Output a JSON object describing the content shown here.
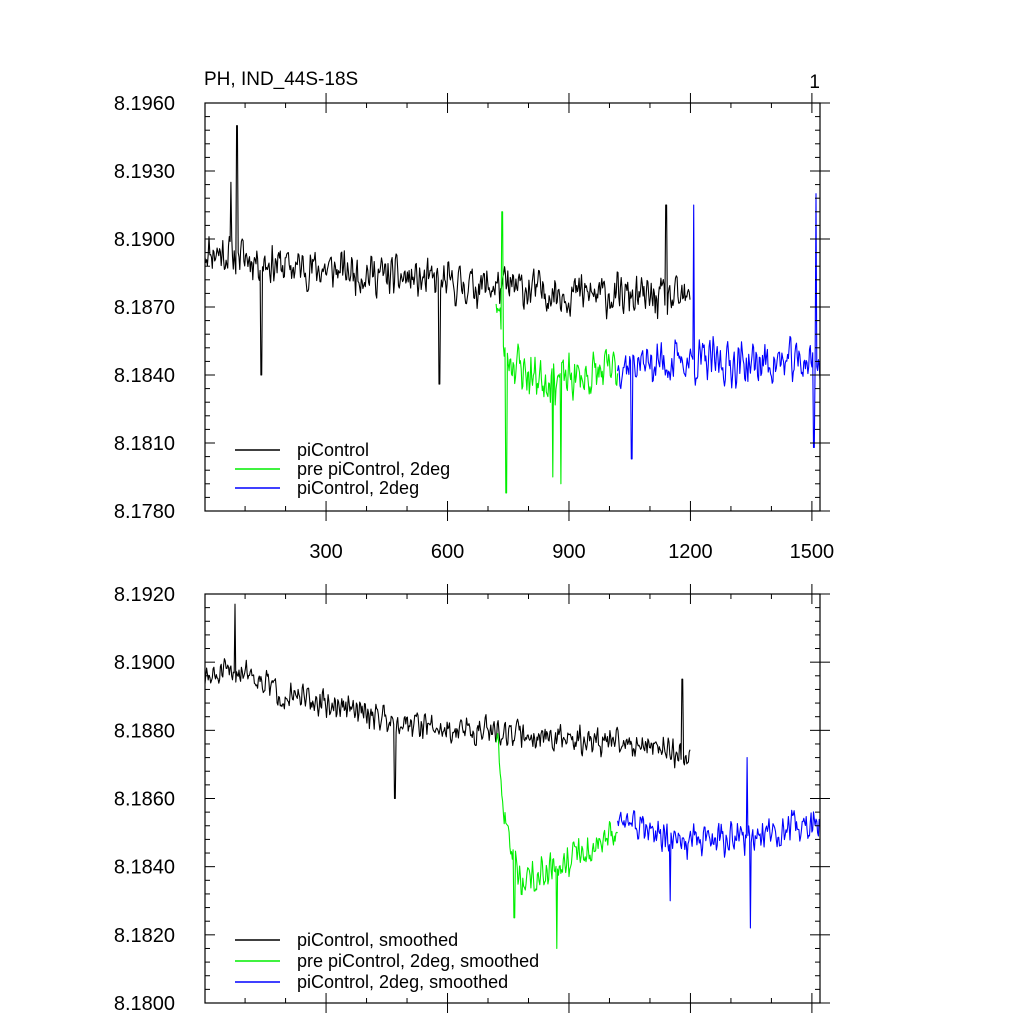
{
  "chart_data": [
    {
      "type": "line",
      "title": "PH, IND_44S-18S",
      "panel_label": "1",
      "xlim": [
        1,
        1520
      ],
      "ylim": [
        8.178,
        8.196
      ],
      "xticks": [
        300,
        600,
        900,
        1200,
        1500
      ],
      "xtick_labels": [
        "300",
        "600",
        "900",
        "1200",
        "1500"
      ],
      "yticks": [
        8.178,
        8.181,
        8.184,
        8.187,
        8.19,
        8.193,
        8.196
      ],
      "ytick_labels": [
        "8.1780",
        "8.1810",
        "8.1840",
        "8.1870",
        "8.1900",
        "8.1930",
        "8.1960"
      ],
      "legend": "bottom-left",
      "series": [
        {
          "name": "piControl",
          "color": "#000000",
          "x_start": 1,
          "x_end": 1200,
          "anchors": [
            [
              1,
              8.1895
            ],
            [
              100,
              8.1892
            ],
            [
              200,
              8.1888
            ],
            [
              400,
              8.1885
            ],
            [
              600,
              8.188
            ],
            [
              720,
              8.1879
            ],
            [
              900,
              8.1876
            ],
            [
              1200,
              8.1873
            ]
          ],
          "amplitude": 0.0011,
          "seed": 11,
          "extremes": [
            [
              80,
              8.195
            ],
            [
              65,
              8.1925
            ],
            [
              140,
              8.184
            ],
            [
              580,
              8.1836
            ],
            [
              1140,
              8.1915
            ]
          ]
        },
        {
          "name": "pre piControl, 2deg",
          "color": "#00ee00",
          "x_start": 720,
          "x_end": 1020,
          "anchors": [
            [
              720,
              8.1875
            ],
            [
              740,
              8.185
            ],
            [
              800,
              8.184
            ],
            [
              900,
              8.1838
            ],
            [
              1020,
              8.1842
            ]
          ],
          "amplitude": 0.0013,
          "seed": 23,
          "extremes": [
            [
              735,
              8.1912
            ],
            [
              745,
              8.1788
            ],
            [
              860,
              8.1795
            ],
            [
              880,
              8.1792
            ]
          ]
        },
        {
          "name": "piControl, 2deg",
          "color": "#0000ff",
          "x_start": 1020,
          "x_end": 1520,
          "anchors": [
            [
              1020,
              8.1845
            ],
            [
              1200,
              8.1846
            ],
            [
              1350,
              8.1845
            ],
            [
              1520,
              8.1846
            ]
          ],
          "amplitude": 0.0012,
          "seed": 37,
          "extremes": [
            [
              1208,
              8.1915
            ],
            [
              1510,
              8.192
            ],
            [
              1505,
              8.1808
            ],
            [
              1055,
              8.1803
            ]
          ]
        }
      ]
    },
    {
      "type": "line",
      "title": "",
      "xlim": [
        1,
        1520
      ],
      "ylim": [
        8.18,
        8.192
      ],
      "xticks": [
        300,
        600,
        900,
        1200,
        1500
      ],
      "xtick_labels": [],
      "yticks": [
        8.18,
        8.182,
        8.184,
        8.186,
        8.188,
        8.19,
        8.192
      ],
      "ytick_labels": [
        "8.1800",
        "8.1820",
        "8.1840",
        "8.1860",
        "8.1880",
        "8.1900",
        "8.1920"
      ],
      "legend": "bottom-left",
      "series": [
        {
          "name": "piControl, smoothed",
          "color": "#000000",
          "x_start": 1,
          "x_end": 1200,
          "anchors": [
            [
              1,
              8.1895
            ],
            [
              100,
              8.1898
            ],
            [
              200,
              8.189
            ],
            [
              400,
              8.1885
            ],
            [
              600,
              8.188
            ],
            [
              720,
              8.188
            ],
            [
              900,
              8.1877
            ],
            [
              1100,
              8.1876
            ],
            [
              1200,
              8.1872
            ]
          ],
          "amplitude": 0.0005,
          "seed": 51,
          "extremes": [
            [
              75,
              8.1917
            ],
            [
              470,
              8.186
            ],
            [
              1180,
              8.1895
            ]
          ]
        },
        {
          "name": "pre piControl, 2deg, smoothed",
          "color": "#00ee00",
          "x_start": 720,
          "x_end": 1020,
          "anchors": [
            [
              720,
              8.1878
            ],
            [
              740,
              8.1855
            ],
            [
              780,
              8.1835
            ],
            [
              850,
              8.184
            ],
            [
              950,
              8.1845
            ],
            [
              1020,
              8.185
            ]
          ],
          "amplitude": 0.0006,
          "seed": 63,
          "extremes": [
            [
              765,
              8.1825
            ],
            [
              870,
              8.1816
            ]
          ]
        },
        {
          "name": "piControl, 2deg, smoothed",
          "color": "#0000ff",
          "x_start": 1020,
          "x_end": 1520,
          "anchors": [
            [
              1020,
              8.1855
            ],
            [
              1150,
              8.1847
            ],
            [
              1300,
              8.1848
            ],
            [
              1400,
              8.185
            ],
            [
              1520,
              8.1852
            ]
          ],
          "amplitude": 0.0006,
          "seed": 77,
          "extremes": [
            [
              1340,
              8.1872
            ],
            [
              1348,
              8.1822
            ],
            [
              1150,
              8.183
            ]
          ]
        }
      ]
    }
  ]
}
